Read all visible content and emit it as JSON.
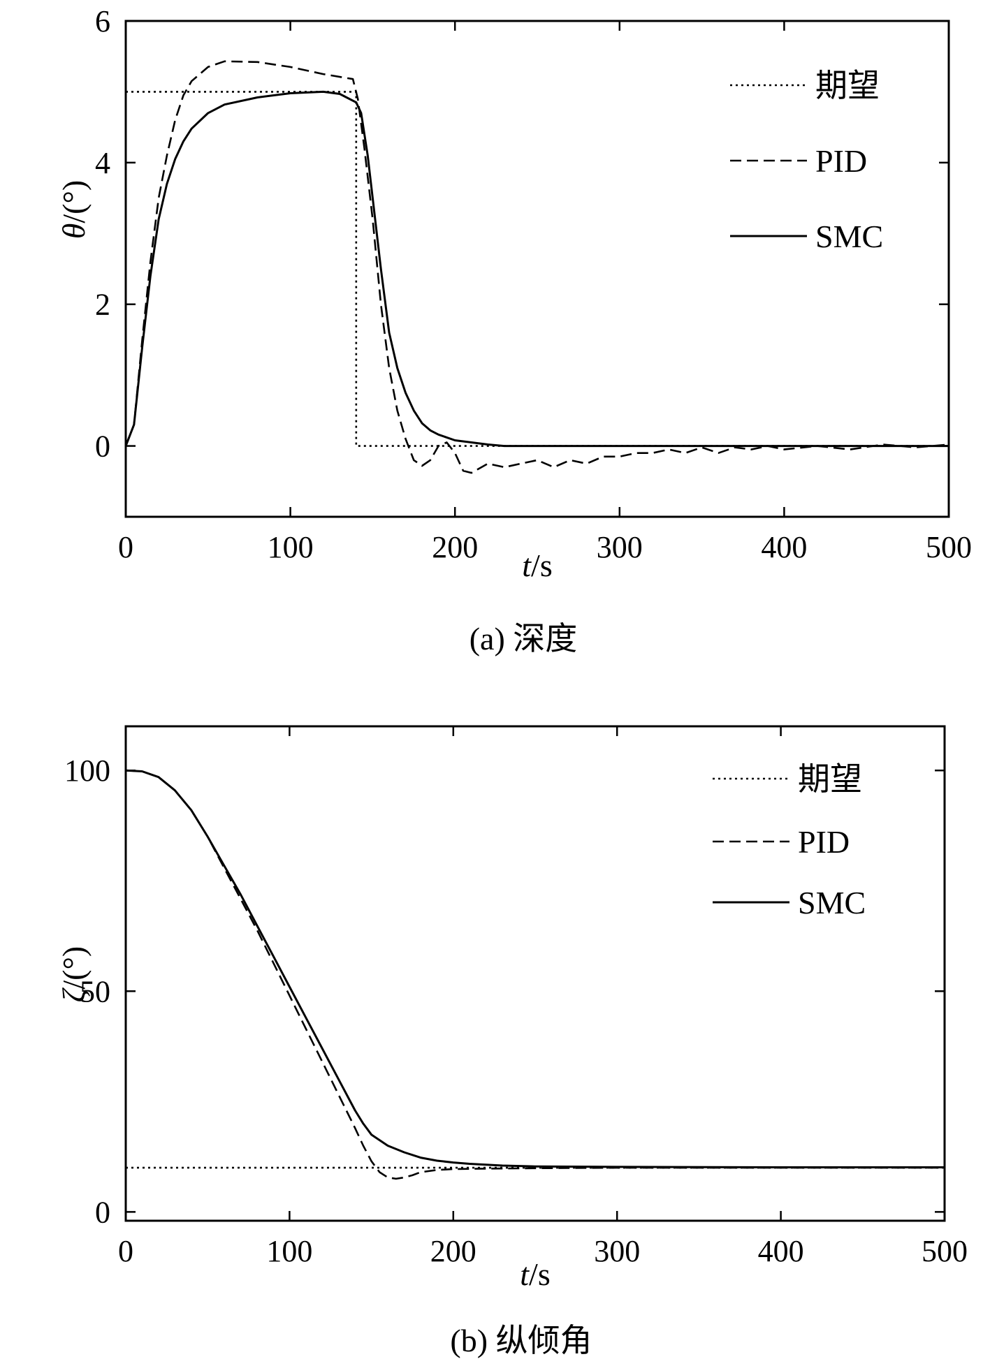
{
  "chart_data": [
    {
      "type": "line",
      "caption": "(a) 深度",
      "xlabel_var": "t",
      "xlabel_unit": "/s",
      "ylabel_var": "θ",
      "ylabel_unit": "/(°)",
      "xlim": [
        0,
        500
      ],
      "ylim": [
        -1,
        6
      ],
      "xticks": [
        0,
        100,
        200,
        300,
        400,
        500
      ],
      "yticks": [
        0,
        2,
        4,
        6
      ],
      "legend_position": "top-right",
      "grid": false,
      "series": [
        {
          "name": "期望",
          "style": "dotted",
          "points": [
            [
              0,
              5
            ],
            [
              140,
              5
            ],
            [
              140,
              0
            ],
            [
              500,
              0
            ]
          ]
        },
        {
          "name": "PID",
          "style": "dashed",
          "points": [
            [
              0,
              0
            ],
            [
              5,
              0.3
            ],
            [
              10,
              1.5
            ],
            [
              15,
              2.6
            ],
            [
              20,
              3.5
            ],
            [
              25,
              4.1
            ],
            [
              30,
              4.6
            ],
            [
              35,
              4.95
            ],
            [
              40,
              5.15
            ],
            [
              50,
              5.35
            ],
            [
              60,
              5.43
            ],
            [
              80,
              5.42
            ],
            [
              100,
              5.35
            ],
            [
              120,
              5.25
            ],
            [
              138,
              5.18
            ],
            [
              141,
              4.9
            ],
            [
              145,
              4.2
            ],
            [
              150,
              3.2
            ],
            [
              155,
              2.0
            ],
            [
              160,
              1.1
            ],
            [
              165,
              0.5
            ],
            [
              170,
              0.1
            ],
            [
              175,
              -0.2
            ],
            [
              180,
              -0.28
            ],
            [
              185,
              -0.2
            ],
            [
              190,
              0.0
            ],
            [
              195,
              0.05
            ],
            [
              200,
              -0.1
            ],
            [
              205,
              -0.35
            ],
            [
              210,
              -0.38
            ],
            [
              220,
              -0.25
            ],
            [
              230,
              -0.3
            ],
            [
              240,
              -0.25
            ],
            [
              250,
              -0.2
            ],
            [
              260,
              -0.3
            ],
            [
              270,
              -0.2
            ],
            [
              280,
              -0.25
            ],
            [
              290,
              -0.15
            ],
            [
              300,
              -0.15
            ],
            [
              310,
              -0.1
            ],
            [
              320,
              -0.1
            ],
            [
              330,
              -0.05
            ],
            [
              340,
              -0.1
            ],
            [
              350,
              -0.02
            ],
            [
              360,
              -0.1
            ],
            [
              370,
              -0.02
            ],
            [
              380,
              -0.05
            ],
            [
              390,
              0.0
            ],
            [
              400,
              -0.05
            ],
            [
              420,
              0.0
            ],
            [
              440,
              -0.05
            ],
            [
              460,
              0.02
            ],
            [
              480,
              -0.02
            ],
            [
              500,
              0.02
            ]
          ]
        },
        {
          "name": "SMC",
          "style": "solid",
          "points": [
            [
              0,
              0
            ],
            [
              5,
              0.3
            ],
            [
              10,
              1.4
            ],
            [
              15,
              2.4
            ],
            [
              20,
              3.2
            ],
            [
              25,
              3.7
            ],
            [
              30,
              4.05
            ],
            [
              35,
              4.3
            ],
            [
              40,
              4.48
            ],
            [
              50,
              4.7
            ],
            [
              60,
              4.82
            ],
            [
              80,
              4.92
            ],
            [
              100,
              4.98
            ],
            [
              120,
              5.0
            ],
            [
              130,
              4.97
            ],
            [
              140,
              4.85
            ],
            [
              143,
              4.7
            ],
            [
              147,
              4.1
            ],
            [
              150,
              3.5
            ],
            [
              155,
              2.5
            ],
            [
              160,
              1.6
            ],
            [
              165,
              1.1
            ],
            [
              170,
              0.75
            ],
            [
              175,
              0.5
            ],
            [
              180,
              0.32
            ],
            [
              185,
              0.22
            ],
            [
              190,
              0.16
            ],
            [
              200,
              0.08
            ],
            [
              210,
              0.05
            ],
            [
              220,
              0.02
            ],
            [
              230,
              0.0
            ],
            [
              250,
              0.0
            ],
            [
              300,
              0.0
            ],
            [
              350,
              0.0
            ],
            [
              400,
              0.0
            ],
            [
              450,
              0.0
            ],
            [
              500,
              0.0
            ]
          ]
        }
      ]
    },
    {
      "type": "line",
      "caption": "(b) 纵倾角",
      "xlabel_var": "t",
      "xlabel_unit": "/s",
      "ylabel_var": "ζ",
      "ylabel_unit": "/(°)",
      "xlim": [
        0,
        500
      ],
      "ylim": [
        -2,
        110
      ],
      "xticks": [
        0,
        100,
        200,
        300,
        400,
        500
      ],
      "yticks": [
        0,
        50,
        100
      ],
      "legend_position": "top-right",
      "grid": false,
      "series": [
        {
          "name": "期望",
          "style": "dotted",
          "points": [
            [
              0,
              10
            ],
            [
              500,
              10
            ]
          ]
        },
        {
          "name": "PID",
          "style": "dashed",
          "points": [
            [
              0,
              100
            ],
            [
              10,
              99.8
            ],
            [
              20,
              98.5
            ],
            [
              30,
              95.5
            ],
            [
              40,
              91
            ],
            [
              50,
              85
            ],
            [
              60,
              78
            ],
            [
              70,
              71
            ],
            [
              80,
              64
            ],
            [
              90,
              56.5
            ],
            [
              100,
              49
            ],
            [
              110,
              41.5
            ],
            [
              120,
              34
            ],
            [
              130,
              26.5
            ],
            [
              140,
              19
            ],
            [
              145,
              15
            ],
            [
              150,
              11.5
            ],
            [
              155,
              9
            ],
            [
              160,
              7.8
            ],
            [
              165,
              7.5
            ],
            [
              170,
              7.8
            ],
            [
              175,
              8.3
            ],
            [
              180,
              9.0
            ],
            [
              190,
              9.5
            ],
            [
              200,
              9.7
            ],
            [
              220,
              9.8
            ],
            [
              250,
              9.9
            ],
            [
              300,
              10
            ],
            [
              400,
              10
            ],
            [
              500,
              10
            ]
          ]
        },
        {
          "name": "SMC",
          "style": "solid",
          "points": [
            [
              0,
              100
            ],
            [
              10,
              99.8
            ],
            [
              20,
              98.5
            ],
            [
              30,
              95.5
            ],
            [
              40,
              91
            ],
            [
              50,
              85
            ],
            [
              60,
              78.5
            ],
            [
              70,
              72
            ],
            [
              80,
              65
            ],
            [
              90,
              58
            ],
            [
              100,
              51
            ],
            [
              110,
              44
            ],
            [
              120,
              37
            ],
            [
              130,
              30
            ],
            [
              140,
              23
            ],
            [
              145,
              20
            ],
            [
              150,
              17.5
            ],
            [
              160,
              15
            ],
            [
              170,
              13.5
            ],
            [
              180,
              12.3
            ],
            [
              190,
              11.6
            ],
            [
              200,
              11.2
            ],
            [
              210,
              10.9
            ],
            [
              220,
              10.7
            ],
            [
              230,
              10.5
            ],
            [
              250,
              10.3
            ],
            [
              300,
              10.2
            ],
            [
              400,
              10.1
            ],
            [
              500,
              10.1
            ]
          ]
        }
      ]
    }
  ]
}
